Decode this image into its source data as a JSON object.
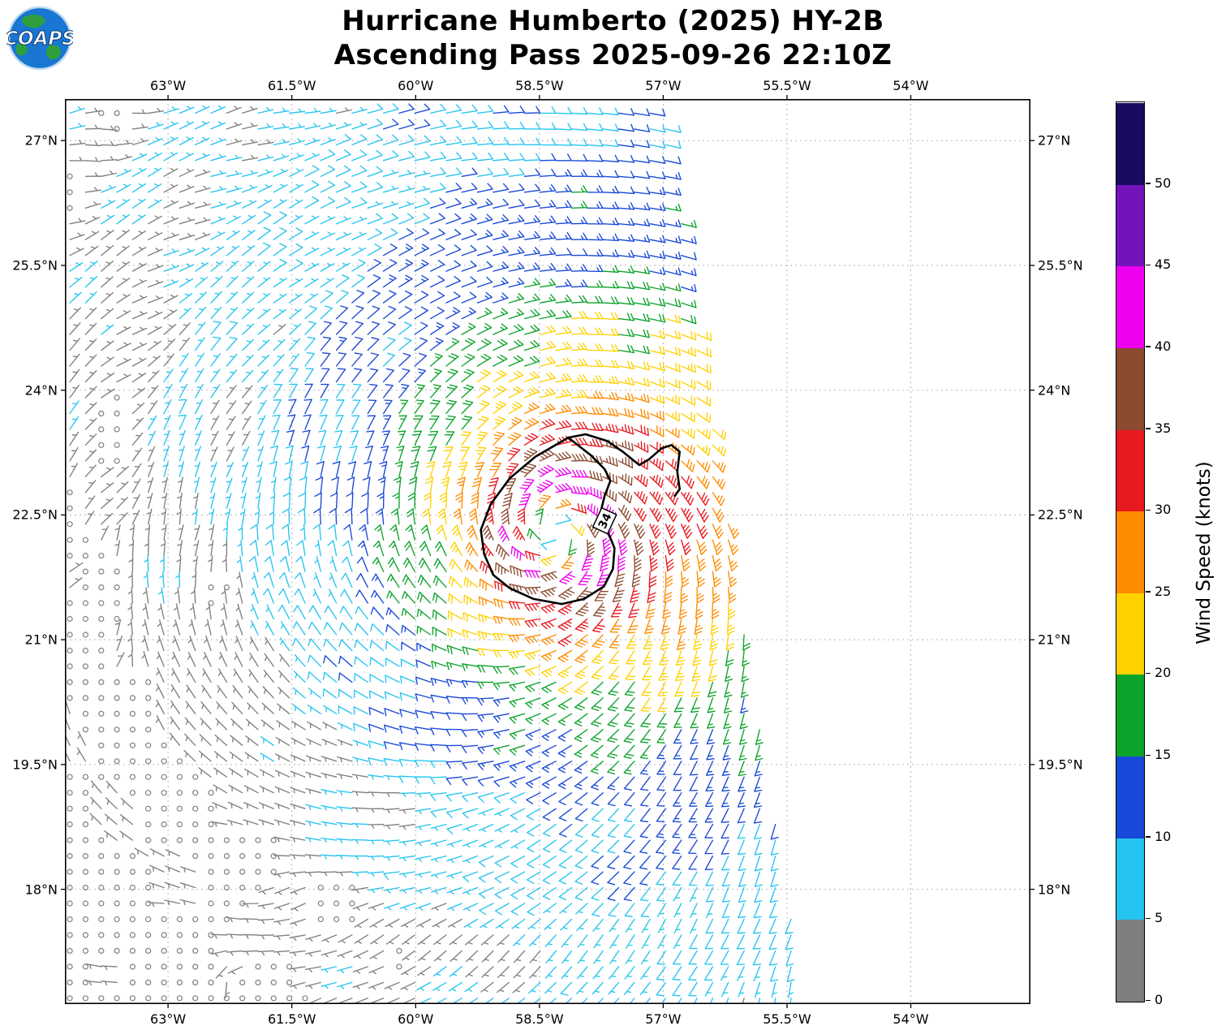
{
  "logo": {
    "text": "COAPS"
  },
  "title": {
    "line1": "Hurricane Humberto (2025) HY-2B",
    "line2": "Ascending Pass 2025-09-26 22:10Z"
  },
  "colorbar": {
    "title": "Wind Speed (knots)",
    "ticks": [
      0,
      5,
      10,
      15,
      20,
      25,
      30,
      35,
      40,
      45,
      50
    ],
    "vmin": 0,
    "vmax": 55,
    "colors": [
      "#7f7f7f",
      "#25c4f0",
      "#1848d8",
      "#0ca32b",
      "#ffd100",
      "#ff8c00",
      "#e8191f",
      "#8c4a2f",
      "#ee00ee",
      "#7513bb",
      "#190a62"
    ]
  },
  "chart_data": {
    "type": "wind_barb_map",
    "title": "Hurricane Humberto (2025) HY-2B",
    "subtitle": "Ascending Pass 2025-09-26 22:10Z",
    "storm": "Hurricane Humberto",
    "year": "2025",
    "satellite": "HY-2B",
    "pass_type": "Ascending",
    "pass_time": "2025-09-26 22:10Z",
    "wind_speed_units": "knots",
    "axes": {
      "lon_ticks_degW": [
        63,
        61.5,
        60,
        58.5,
        57,
        55.5,
        54
      ],
      "lat_ticks_degN": [
        27,
        25.5,
        24,
        22.5,
        21,
        19.5,
        18
      ],
      "lon_suffix": "°W",
      "lat_suffix": "°N",
      "lon_range_degW": [
        64.25,
        52.55
      ],
      "lat_range_degN": [
        16.62,
        27.5
      ],
      "grid": "dashed"
    },
    "speed_bins_knots": [
      [
        0,
        5
      ],
      [
        5,
        10
      ],
      [
        10,
        15
      ],
      [
        15,
        20
      ],
      [
        20,
        25
      ],
      [
        25,
        30
      ],
      [
        30,
        35
      ],
      [
        35,
        40
      ],
      [
        40,
        45
      ],
      [
        45,
        50
      ],
      [
        50,
        55
      ]
    ],
    "bin_colors": [
      "#7f7f7f",
      "#25c4f0",
      "#1848d8",
      "#0ca32b",
      "#ffd100",
      "#ff8c00",
      "#e8191f",
      "#8c4a2f",
      "#ee00ee",
      "#7513bb",
      "#190a62"
    ],
    "storm_center": {
      "lon_degW": 58.3,
      "lat_degN": 22.3
    },
    "max_wind_knots": 44,
    "radius_max_wind_deg": 0.5,
    "barb_grid_spacing_deg": 0.19,
    "swath_edge": {
      "ref_lat": 27.4,
      "lonW_at_ref": 57.0,
      "slope_degW_per_degN": 0.159
    },
    "wind_model": {
      "center": {
        "lon_degW": 58.3,
        "lat_degN": 22.3
      },
      "vmax_kt": 44,
      "rmax_deg": 0.5,
      "decay_a0": 0.257,
      "decay_k": 0.223,
      "decay_aniso": 0.1,
      "inflow_deg": 16,
      "background_u_kt": -2.6,
      "background_v_kt": 2.2,
      "noise_kt": 1.5,
      "patch_noise_kt": 1.6,
      "rotation": "counterclockwise"
    },
    "contour_34kt": {
      "label": "34",
      "value_kt": 34,
      "label_lonW": 57.71,
      "label_lat": 22.43,
      "label_rotation_deg": -65,
      "loop": [
        [
          58.15,
          23.43
        ],
        [
          58.55,
          23.2
        ],
        [
          58.86,
          22.94
        ],
        [
          59.09,
          22.63
        ],
        [
          59.21,
          22.32
        ],
        [
          59.17,
          22.03
        ],
        [
          59.06,
          21.78
        ],
        [
          58.86,
          21.62
        ],
        [
          58.57,
          21.49
        ],
        [
          58.23,
          21.43
        ],
        [
          57.96,
          21.49
        ],
        [
          57.72,
          21.64
        ],
        [
          57.61,
          21.85
        ],
        [
          57.59,
          22.1
        ],
        [
          57.68,
          22.32
        ],
        [
          57.76,
          22.53
        ],
        [
          57.71,
          22.73
        ],
        [
          57.64,
          22.91
        ],
        [
          57.71,
          23.05
        ],
        [
          57.88,
          23.22
        ]
      ],
      "tail": [
        [
          58.15,
          23.43
        ],
        [
          57.94,
          23.47
        ],
        [
          57.68,
          23.39
        ],
        [
          57.49,
          23.26
        ],
        [
          57.29,
          23.1
        ],
        [
          57.17,
          23.17
        ],
        [
          57.02,
          23.3
        ],
        [
          56.9,
          23.34
        ],
        [
          56.8,
          23.26
        ],
        [
          56.83,
          23.02
        ],
        [
          56.8,
          22.81
        ],
        [
          56.86,
          22.73
        ]
      ]
    }
  }
}
